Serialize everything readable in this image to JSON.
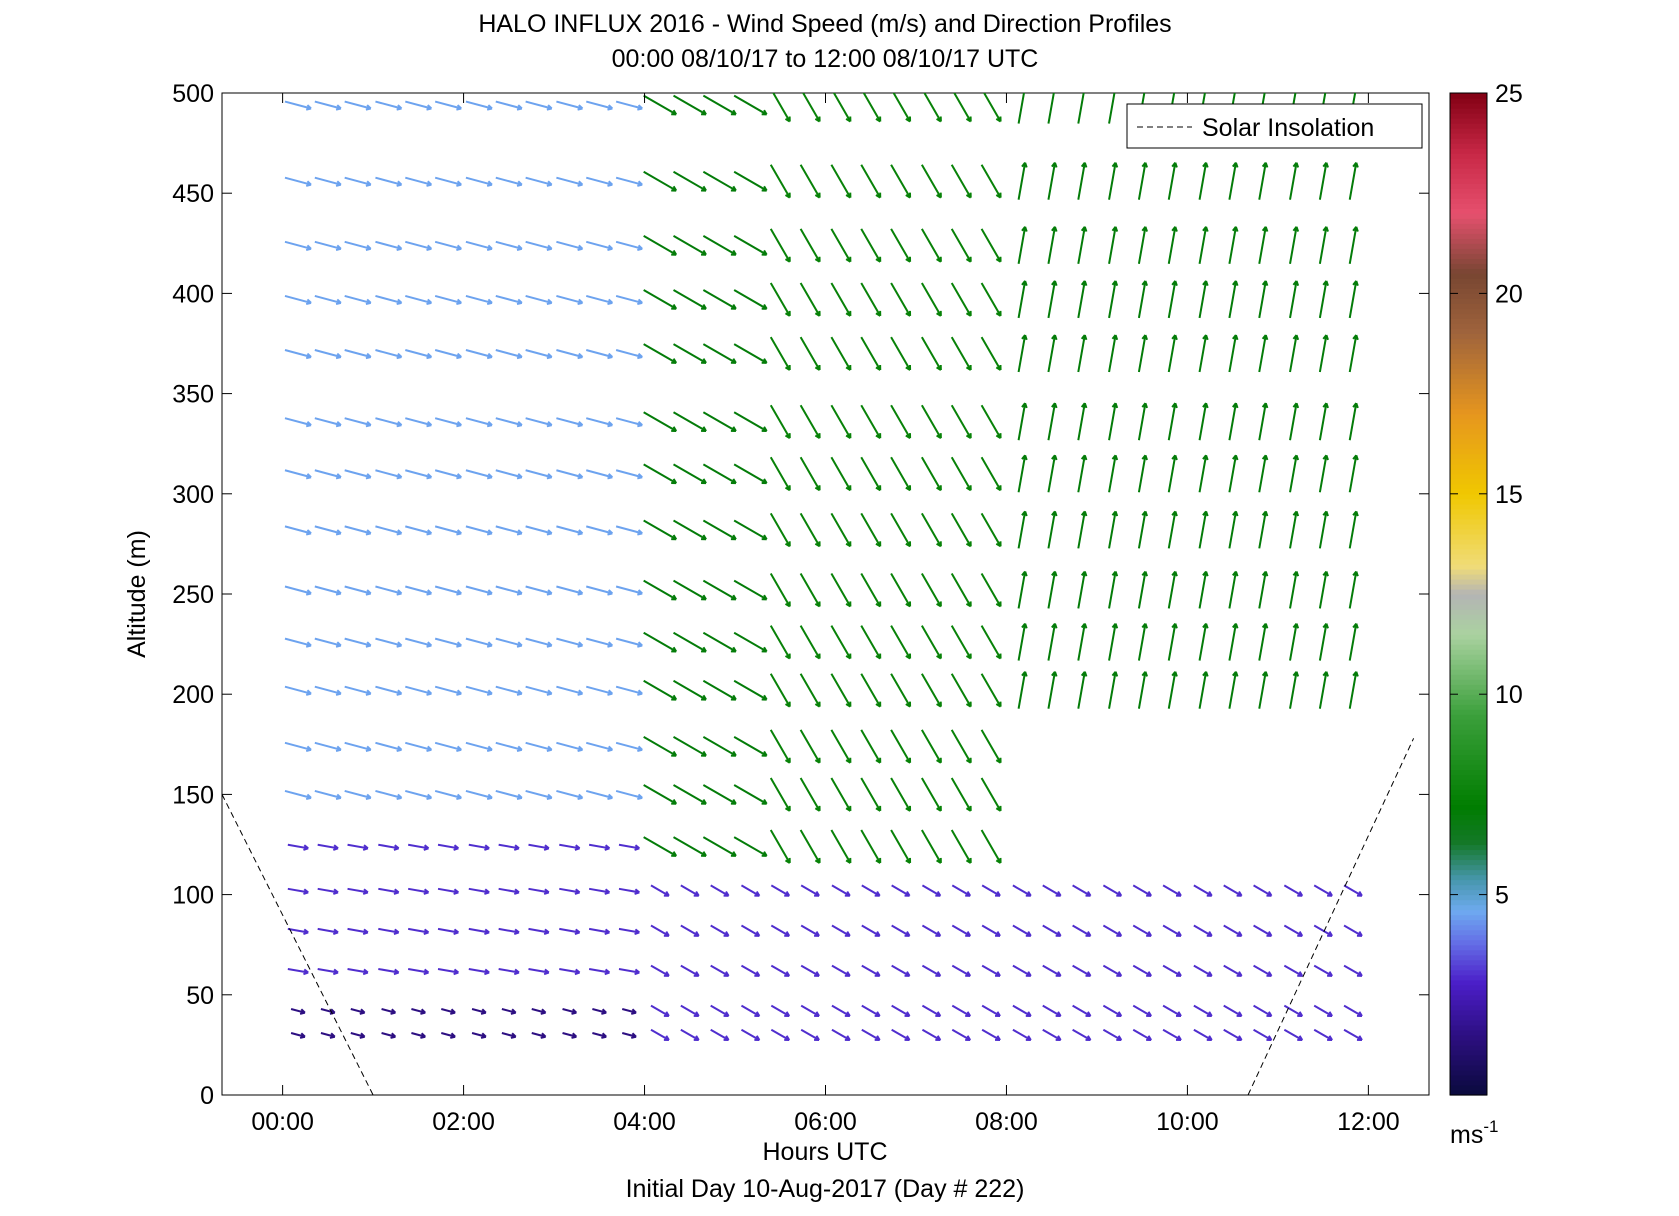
{
  "title_line1": "HALO INFLUX 2016 - Wind Speed (m/s) and Direction Profiles",
  "title_line2": "00:00 08/10/17 to 12:00 08/10/17  UTC",
  "footer": "Initial Day 10-Aug-2017 (Day # 222)",
  "colorbar_unit": "ms",
  "colorbar_unit_sup": "-1",
  "chart_data": {
    "type": "quiver",
    "title": "HALO INFLUX 2016 - Wind Speed (m/s) and Direction Profiles",
    "subtitle": "00:00 08/10/17 to 12:00 08/10/17  UTC",
    "xlabel": "Hours UTC",
    "ylabel": "Altitude (m)",
    "xlim": [
      -0.67,
      12.67
    ],
    "ylim": [
      0,
      500
    ],
    "xticks": [
      0,
      2,
      4,
      6,
      8,
      10,
      12
    ],
    "xtick_labels": [
      "00:00",
      "02:00",
      "04:00",
      "06:00",
      "08:00",
      "10:00",
      "12:00"
    ],
    "yticks": [
      0,
      50,
      100,
      150,
      200,
      250,
      300,
      350,
      400,
      450,
      500
    ],
    "ytick_labels": [
      "0",
      "50",
      "100",
      "150",
      "200",
      "250",
      "300",
      "350",
      "400",
      "450",
      "500"
    ],
    "colorbar": {
      "min": 0,
      "max": 25,
      "ticks": [
        5,
        10,
        15,
        20,
        25
      ],
      "tick_labels": [
        "5",
        "10",
        "15",
        "20",
        "25"
      ],
      "unit": "ms-1"
    },
    "legend": {
      "position": "top-right",
      "entries": [
        "Solar Insolation"
      ]
    },
    "solar_insolation": [
      {
        "x": [
          -0.67,
          1.0
        ],
        "y": [
          150,
          0
        ]
      },
      {
        "x": [
          10.67,
          12.5
        ],
        "y": [
          0,
          178
        ]
      }
    ],
    "times": [
      0.17,
      0.5,
      0.83,
      1.17,
      1.5,
      1.83,
      2.17,
      2.5,
      2.83,
      3.17,
      3.5,
      3.83,
      4.17,
      4.5,
      4.83,
      5.17,
      5.5,
      5.83,
      6.17,
      6.5,
      6.83,
      7.17,
      7.5,
      7.83,
      8.17,
      8.5,
      8.83,
      9.17,
      9.5,
      9.83,
      10.17,
      10.5,
      10.83,
      11.17,
      11.5,
      11.83
    ],
    "altitudes": [
      30,
      42,
      62,
      82,
      102,
      124,
      150,
      174,
      202,
      226,
      252,
      282,
      310,
      336,
      370,
      397,
      424,
      456,
      494
    ],
    "profiles": [
      {
        "time_range": [
          0.0,
          4.0
        ],
        "altitude_range": [
          30,
          42
        ],
        "speed_ms": 1.5,
        "direction_deg": 285
      },
      {
        "time_range": [
          0.0,
          4.0
        ],
        "altitude_range": [
          62,
          124
        ],
        "speed_ms": 3.0,
        "direction_deg": 280
      },
      {
        "time_range": [
          0.0,
          4.0
        ],
        "altitude_range": [
          150,
          494
        ],
        "speed_ms": 4.5,
        "direction_deg": 285
      },
      {
        "time_range": [
          4.0,
          5.2
        ],
        "altitude_range": [
          124,
          494
        ],
        "speed_ms": 7.0,
        "direction_deg": 300
      },
      {
        "time_range": [
          5.2,
          8.0
        ],
        "altitude_range": [
          124,
          494
        ],
        "speed_ms": 7.5,
        "direction_deg": 330
      },
      {
        "time_range": [
          8.0,
          12.0
        ],
        "altitude_range": [
          200,
          494
        ],
        "speed_ms": 7.0,
        "direction_deg": 190
      },
      {
        "time_range": [
          4.0,
          12.0
        ],
        "altitude_range": [
          30,
          102
        ],
        "speed_ms": 3.0,
        "direction_deg": 300
      }
    ],
    "max_speed_shown_ms": 9
  }
}
